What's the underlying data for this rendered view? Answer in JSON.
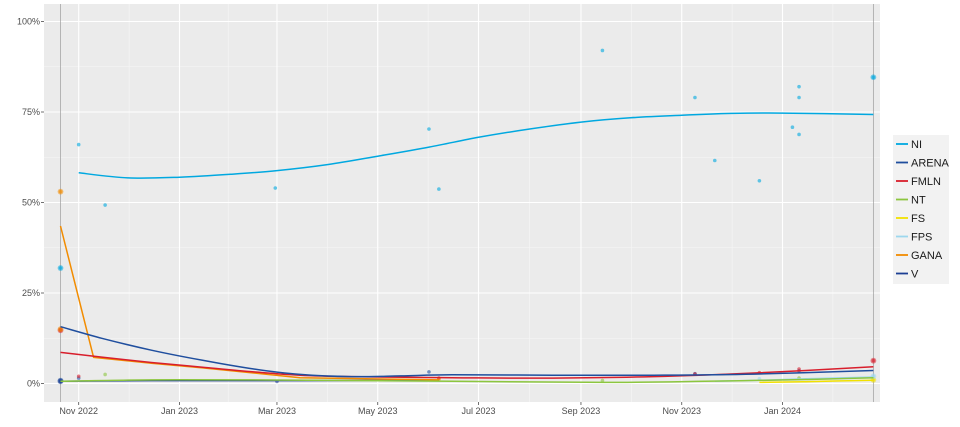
{
  "chart_data": {
    "type": "line",
    "title": "",
    "xlabel": "",
    "ylabel": "",
    "ylim": [
      0,
      100
    ],
    "xlim": [
      "2022-10-11",
      "2024-02-29"
    ],
    "grid": true,
    "legend_position": "right",
    "y_ticks": [
      {
        "value": 0,
        "label": "0%"
      },
      {
        "value": 25,
        "label": "25%"
      },
      {
        "value": 50,
        "label": "50%"
      },
      {
        "value": 75,
        "label": "75%"
      },
      {
        "value": 100,
        "label": "100%"
      }
    ],
    "x_ticks": [
      {
        "date": "2022-11-01",
        "label": "Nov 2022"
      },
      {
        "date": "2023-01-01",
        "label": "Jan 2023"
      },
      {
        "date": "2023-03-01",
        "label": "Mar 2023"
      },
      {
        "date": "2023-05-01",
        "label": "May 2023"
      },
      {
        "date": "2023-07-01",
        "label": "Jul 2023"
      },
      {
        "date": "2023-09-01",
        "label": "Sep 2023"
      },
      {
        "date": "2023-11-01",
        "label": "Nov 2023"
      },
      {
        "date": "2024-01-01",
        "label": "Jan 2024"
      }
    ],
    "vlines": [
      "2022-10-21",
      "2024-02-25"
    ],
    "series": [
      {
        "name": "NI",
        "color": "#00A8E0",
        "line": [
          [
            "2022-11-01",
            58.2
          ],
          [
            "2022-12-01",
            56.8
          ],
          [
            "2023-01-01",
            57.0
          ],
          [
            "2023-02-01",
            57.8
          ],
          [
            "2023-03-01",
            58.8
          ],
          [
            "2023-04-01",
            60.5
          ],
          [
            "2023-05-01",
            62.8
          ],
          [
            "2023-06-01",
            65.3
          ],
          [
            "2023-07-01",
            68.0
          ],
          [
            "2023-08-01",
            70.3
          ],
          [
            "2023-09-01",
            72.2
          ],
          [
            "2023-10-01",
            73.4
          ],
          [
            "2023-11-01",
            74.1
          ],
          [
            "2023-12-01",
            74.6
          ],
          [
            "2024-01-01",
            74.7
          ],
          [
            "2024-02-25",
            74.3
          ]
        ],
        "points": [
          [
            "2022-10-21",
            31.9
          ],
          [
            "2022-11-01",
            66.0
          ],
          [
            "2022-11-17",
            49.3
          ],
          [
            "2023-02-28",
            54.0
          ],
          [
            "2023-06-01",
            70.3
          ],
          [
            "2023-06-07",
            53.7
          ],
          [
            "2023-09-14",
            92.0
          ],
          [
            "2023-11-09",
            79.0
          ],
          [
            "2023-11-21",
            61.6
          ],
          [
            "2023-12-18",
            56.0
          ],
          [
            "2024-01-07",
            70.8
          ],
          [
            "2024-01-11",
            82.0
          ],
          [
            "2024-01-11",
            79.0
          ],
          [
            "2024-01-11",
            68.8
          ],
          [
            "2024-02-25",
            84.6
          ]
        ]
      },
      {
        "name": "ARENA",
        "color": "#1F4E9E",
        "line": [
          [
            "2022-10-21",
            15.7
          ],
          [
            "2022-11-15",
            12.5
          ],
          [
            "2022-12-15",
            9.2
          ],
          [
            "2023-01-15",
            6.4
          ],
          [
            "2023-02-15",
            4.0
          ],
          [
            "2023-03-15",
            2.5
          ],
          [
            "2023-04-15",
            1.9
          ],
          [
            "2023-05-15",
            2.1
          ],
          [
            "2023-06-15",
            2.4
          ],
          [
            "2023-08-15",
            2.3
          ],
          [
            "2023-10-15",
            2.3
          ],
          [
            "2023-12-15",
            2.6
          ],
          [
            "2024-02-25",
            3.6
          ]
        ],
        "points": [
          [
            "2022-10-21",
            0.8
          ],
          [
            "2022-11-01",
            1.5
          ],
          [
            "2023-06-01",
            3.2
          ],
          [
            "2023-11-09",
            2.7
          ],
          [
            "2024-01-11",
            3.5
          ]
        ]
      },
      {
        "name": "FMLN",
        "color": "#D81E2C",
        "line": [
          [
            "2022-10-21",
            8.6
          ],
          [
            "2022-11-15",
            7.3
          ],
          [
            "2022-12-15",
            5.8
          ],
          [
            "2023-01-15",
            4.5
          ],
          [
            "2023-02-15",
            3.2
          ],
          [
            "2023-03-15",
            2.3
          ],
          [
            "2023-04-15",
            1.9
          ],
          [
            "2023-06-15",
            1.6
          ],
          [
            "2023-08-15",
            1.5
          ],
          [
            "2023-10-15",
            1.9
          ],
          [
            "2023-12-15",
            2.9
          ],
          [
            "2024-02-25",
            4.6
          ]
        ],
        "points": [
          [
            "2022-10-21",
            14.7
          ],
          [
            "2022-11-01",
            2.0
          ],
          [
            "2023-06-07",
            1.5
          ],
          [
            "2023-11-09",
            2.6
          ],
          [
            "2023-12-18",
            3.0
          ],
          [
            "2024-01-11",
            4.0
          ],
          [
            "2024-02-25",
            6.3
          ]
        ]
      },
      {
        "name": "NT",
        "color": "#8CC63F",
        "line": [
          [
            "2022-10-21",
            0.6
          ],
          [
            "2022-12-15",
            1.0
          ],
          [
            "2023-02-15",
            1.0
          ],
          [
            "2023-06-15",
            0.6
          ],
          [
            "2023-09-15",
            0.3
          ],
          [
            "2023-11-15",
            0.6
          ],
          [
            "2024-01-15",
            1.1
          ],
          [
            "2024-02-25",
            1.6
          ]
        ],
        "points": [
          [
            "2022-11-17",
            2.5
          ],
          [
            "2023-09-14",
            0.8
          ],
          [
            "2024-01-11",
            1.5
          ]
        ]
      },
      {
        "name": "FS",
        "color": "#F2E100",
        "line": [
          [
            "2023-12-18",
            0.3
          ],
          [
            "2024-01-15",
            0.5
          ],
          [
            "2024-02-25",
            0.9
          ]
        ],
        "points": [
          [
            "2024-02-25",
            1.0
          ]
        ]
      },
      {
        "name": "FPS",
        "color": "#9DD7EE",
        "line": [
          [
            "2023-11-21",
            0.6
          ],
          [
            "2023-12-18",
            0.9
          ],
          [
            "2024-01-15",
            1.3
          ],
          [
            "2024-02-25",
            1.8
          ]
        ],
        "points": [
          [
            "2023-12-18",
            1.3
          ],
          [
            "2024-02-25",
            2.0
          ]
        ]
      },
      {
        "name": "GANA",
        "color": "#F28C00",
        "line": [
          [
            "2022-10-21",
            43.5
          ],
          [
            "2022-11-10",
            7.2
          ],
          [
            "2022-12-15",
            5.6
          ],
          [
            "2023-01-15",
            4.3
          ],
          [
            "2023-02-15",
            2.9
          ],
          [
            "2023-03-15",
            1.6
          ],
          [
            "2023-06-07",
            1.0
          ]
        ],
        "points": [
          [
            "2022-10-21",
            53.0
          ],
          [
            "2022-10-21",
            15.0
          ],
          [
            "2023-06-07",
            1.2
          ]
        ]
      },
      {
        "name": "V",
        "color": "#1C3F94",
        "line": [
          [
            "2022-10-21",
            0.6
          ],
          [
            "2022-12-15",
            0.8
          ],
          [
            "2023-03-15",
            0.8
          ],
          [
            "2023-06-07",
            0.9
          ]
        ],
        "points": [
          [
            "2022-10-21",
            0.6
          ],
          [
            "2023-03-01",
            0.6
          ]
        ]
      }
    ]
  }
}
